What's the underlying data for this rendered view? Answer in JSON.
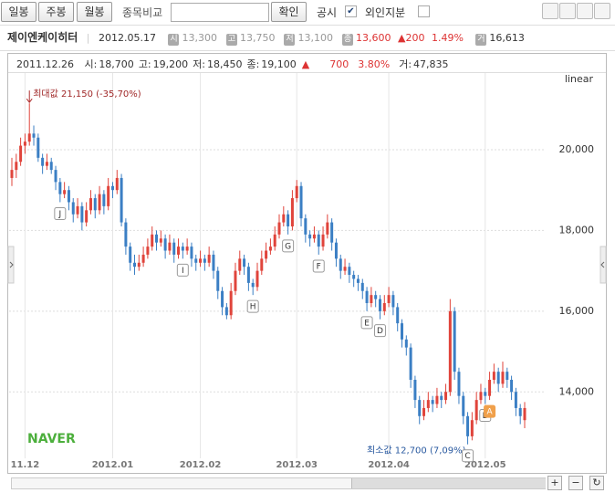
{
  "toolbar": {
    "buttons": [
      "일봉",
      "주봉",
      "월봉"
    ],
    "compare_label": "종목비교",
    "confirm": "확인",
    "checks": [
      {
        "label": "공시",
        "checked": true
      },
      {
        "label": "외인지분",
        "checked": false
      }
    ]
  },
  "header": {
    "name": "제이엔케이히터",
    "date": "2012.05.17",
    "quotes": [
      {
        "label": "시",
        "value": "13,300"
      },
      {
        "label": "고",
        "value": "13,750"
      },
      {
        "label": "저",
        "value": "13,100"
      },
      {
        "label": "종",
        "value": "13,600"
      }
    ],
    "change": "▲200",
    "rate": "1.49%",
    "volume_label": "거",
    "volume": "16,613"
  },
  "info": {
    "date": "2011.12.26",
    "items": [
      {
        "label": "시:",
        "value": "18,700"
      },
      {
        "label": "고:",
        "value": "19,200"
      },
      {
        "label": "저:",
        "value": "18,450"
      },
      {
        "label": "종:",
        "value": "19,100"
      }
    ],
    "change_mark": "▲",
    "change": "700",
    "rate": "3.80%",
    "volume_label": "거:",
    "volume": "47,835"
  },
  "logo": "NAVER",
  "chart_data": {
    "type": "candlestick",
    "scale": "linear",
    "up_color": "#e0443b",
    "down_color": "#3b7fc4",
    "grid": true,
    "ylim": [
      12400,
      21900
    ],
    "yticks": [
      {
        "value": 14000,
        "label": "14,000"
      },
      {
        "value": 16000,
        "label": "16,000"
      },
      {
        "value": 18000,
        "label": "18,000"
      },
      {
        "value": 20000,
        "label": "20,000"
      }
    ],
    "max_label": "최대값 21,150 (-35,70%)",
    "min_label": "최소값 12,700 (7,09%)",
    "categories": [
      null,
      null,
      null,
      "11.12",
      null,
      null,
      null,
      null,
      null,
      null,
      null,
      null,
      null,
      null,
      null,
      null,
      null,
      null,
      null,
      null,
      null,
      null,
      null,
      "2012.01",
      null,
      null,
      null,
      null,
      null,
      null,
      null,
      null,
      null,
      null,
      null,
      null,
      null,
      null,
      null,
      null,
      null,
      null,
      null,
      "2012.02",
      null,
      null,
      null,
      null,
      null,
      null,
      null,
      null,
      null,
      null,
      null,
      null,
      null,
      null,
      null,
      null,
      null,
      null,
      null,
      null,
      null,
      "2012.03",
      null,
      null,
      null,
      null,
      null,
      null,
      null,
      null,
      null,
      null,
      null,
      null,
      null,
      null,
      null,
      null,
      null,
      null,
      null,
      null,
      "2012.04",
      null,
      null,
      null,
      null,
      null,
      null,
      null,
      null,
      null,
      null,
      null,
      null,
      null,
      null,
      null,
      null,
      null,
      null,
      null,
      null,
      null,
      "2012.05",
      null,
      null,
      null,
      null,
      null,
      null,
      null,
      null,
      null
    ],
    "ohlc": [
      [
        19300,
        19800,
        19100,
        19500
      ],
      [
        19500,
        19900,
        19300,
        19700
      ],
      [
        19700,
        20300,
        19600,
        20100
      ],
      [
        20100,
        20400,
        19900,
        20200
      ],
      [
        20200,
        21150,
        20100,
        20400
      ],
      [
        20400,
        20600,
        20100,
        20300
      ],
      [
        20300,
        20400,
        19700,
        19800
      ],
      [
        19800,
        19900,
        19400,
        19600
      ],
      [
        19600,
        19900,
        19500,
        19700
      ],
      [
        19700,
        19800,
        19400,
        19500
      ],
      [
        19500,
        19600,
        19000,
        19200
      ],
      [
        19200,
        19300,
        18700,
        18900
      ],
      [
        18900,
        19200,
        18800,
        19000
      ],
      [
        19000,
        19100,
        18500,
        18700
      ],
      [
        18700,
        18800,
        18200,
        18400
      ],
      [
        18400,
        18800,
        18300,
        18600
      ],
      [
        18600,
        18700,
        18000,
        18200
      ],
      [
        18200,
        18700,
        18100,
        18500
      ],
      [
        18500,
        19000,
        18400,
        18800
      ],
      [
        18800,
        18900,
        18300,
        18500
      ],
      [
        18500,
        19100,
        18400,
        18900
      ],
      [
        18900,
        19000,
        18400,
        18600
      ],
      [
        18600,
        19300,
        18500,
        19100
      ],
      [
        19100,
        19200,
        18800,
        19000
      ],
      [
        19000,
        19500,
        18900,
        19300
      ],
      [
        19300,
        19400,
        18100,
        18200
      ],
      [
        18200,
        18300,
        17400,
        17600
      ],
      [
        17600,
        17700,
        17000,
        17200
      ],
      [
        17200,
        17400,
        16900,
        17100
      ],
      [
        17100,
        17400,
        17000,
        17200
      ],
      [
        17200,
        17600,
        17100,
        17400
      ],
      [
        17400,
        17800,
        17300,
        17600
      ],
      [
        17600,
        18100,
        17500,
        17900
      ],
      [
        17900,
        18000,
        17500,
        17700
      ],
      [
        17700,
        18000,
        17600,
        17800
      ],
      [
        17800,
        17900,
        17300,
        17500
      ],
      [
        17500,
        17900,
        17400,
        17700
      ],
      [
        17700,
        17800,
        17200,
        17400
      ],
      [
        17400,
        17800,
        17300,
        17600
      ],
      [
        17600,
        17700,
        17300,
        17500
      ],
      [
        17500,
        17800,
        17400,
        17600
      ],
      [
        17600,
        17700,
        17100,
        17300
      ],
      [
        17300,
        17400,
        17000,
        17200
      ],
      [
        17200,
        17500,
        17100,
        17300
      ],
      [
        17300,
        17400,
        17000,
        17200
      ],
      [
        17200,
        17600,
        17100,
        17400
      ],
      [
        17400,
        17500,
        16800,
        17000
      ],
      [
        17000,
        17100,
        16300,
        16500
      ],
      [
        16500,
        16600,
        15900,
        16100
      ],
      [
        16100,
        16200,
        15800,
        15900
      ],
      [
        15900,
        16700,
        15800,
        16500
      ],
      [
        16500,
        17200,
        16400,
        17000
      ],
      [
        17000,
        17500,
        16900,
        17300
      ],
      [
        17300,
        17400,
        16900,
        17100
      ],
      [
        17100,
        17200,
        16500,
        16700
      ],
      [
        16700,
        16800,
        16400,
        16600
      ],
      [
        16600,
        17200,
        16500,
        17000
      ],
      [
        17000,
        17500,
        16900,
        17300
      ],
      [
        17300,
        17700,
        17200,
        17500
      ],
      [
        17500,
        17800,
        17400,
        17600
      ],
      [
        17600,
        18100,
        17500,
        17900
      ],
      [
        17900,
        18400,
        17800,
        18200
      ],
      [
        18200,
        18600,
        18100,
        18400
      ],
      [
        18400,
        18500,
        17900,
        18100
      ],
      [
        18100,
        19000,
        18000,
        18800
      ],
      [
        18800,
        19250,
        18700,
        19100
      ],
      [
        19100,
        19200,
        18100,
        18300
      ],
      [
        18300,
        18400,
        17700,
        17900
      ],
      [
        17900,
        18000,
        17600,
        17800
      ],
      [
        17800,
        18100,
        17700,
        17900
      ],
      [
        17900,
        18000,
        17400,
        17600
      ],
      [
        17600,
        18100,
        17500,
        17900
      ],
      [
        17900,
        18400,
        17800,
        18200
      ],
      [
        18200,
        18300,
        17500,
        17700
      ],
      [
        17700,
        17800,
        17100,
        17300
      ],
      [
        17300,
        17400,
        16800,
        17000
      ],
      [
        17000,
        17300,
        16900,
        17100
      ],
      [
        17100,
        17200,
        16700,
        16900
      ],
      [
        16900,
        17000,
        16600,
        16800
      ],
      [
        16800,
        16900,
        16500,
        16700
      ],
      [
        16700,
        16800,
        16300,
        16500
      ],
      [
        16500,
        16600,
        16000,
        16200
      ],
      [
        16200,
        16600,
        16100,
        16400
      ],
      [
        16400,
        16500,
        16100,
        16300
      ],
      [
        16300,
        16400,
        15800,
        16000
      ],
      [
        16000,
        16400,
        15900,
        16200
      ],
      [
        16200,
        16600,
        16100,
        16400
      ],
      [
        16400,
        16500,
        15900,
        16100
      ],
      [
        16100,
        16200,
        15500,
        15700
      ],
      [
        15700,
        15800,
        15100,
        15300
      ],
      [
        15300,
        15400,
        14900,
        15100
      ],
      [
        15100,
        15200,
        14100,
        14300
      ],
      [
        14300,
        14400,
        13600,
        13800
      ],
      [
        13800,
        13900,
        13200,
        13400
      ],
      [
        13400,
        13800,
        13300,
        13600
      ],
      [
        13600,
        14000,
        13500,
        13800
      ],
      [
        13800,
        13900,
        13500,
        13700
      ],
      [
        13700,
        14100,
        13600,
        13900
      ],
      [
        13900,
        14000,
        13600,
        13800
      ],
      [
        13800,
        14200,
        13700,
        14000
      ],
      [
        14000,
        16300,
        13900,
        16000
      ],
      [
        16000,
        16100,
        14300,
        14500
      ],
      [
        14500,
        14600,
        13700,
        13900
      ],
      [
        13900,
        14000,
        13200,
        13400
      ],
      [
        13400,
        13500,
        12700,
        12900
      ],
      [
        12900,
        13500,
        12800,
        13300
      ],
      [
        13300,
        14000,
        13200,
        13800
      ],
      [
        13800,
        14200,
        13700,
        14000
      ],
      [
        14000,
        14100,
        13700,
        13900
      ],
      [
        13900,
        14500,
        13800,
        14300
      ],
      [
        14300,
        14700,
        14200,
        14500
      ],
      [
        14500,
        14600,
        14000,
        14200
      ],
      [
        14200,
        14750,
        14100,
        14500
      ],
      [
        14500,
        14600,
        14100,
        14300
      ],
      [
        14300,
        14400,
        13800,
        14000
      ],
      [
        14000,
        14100,
        13400,
        13600
      ],
      [
        13600,
        13700,
        13200,
        13400
      ],
      [
        13300,
        13750,
        13100,
        13600
      ]
    ],
    "annotations": [
      {
        "label": "J",
        "index": 11
      },
      {
        "label": "I",
        "index": 39
      },
      {
        "label": "H",
        "index": 55
      },
      {
        "label": "G",
        "index": 63
      },
      {
        "label": "F",
        "index": 70
      },
      {
        "label": "E",
        "index": 81
      },
      {
        "label": "D",
        "index": 84
      },
      {
        "label": "C",
        "index": 104
      },
      {
        "label": "B",
        "index": 108
      },
      {
        "label": "A",
        "index": 109,
        "color": "#f0a04b"
      }
    ]
  }
}
